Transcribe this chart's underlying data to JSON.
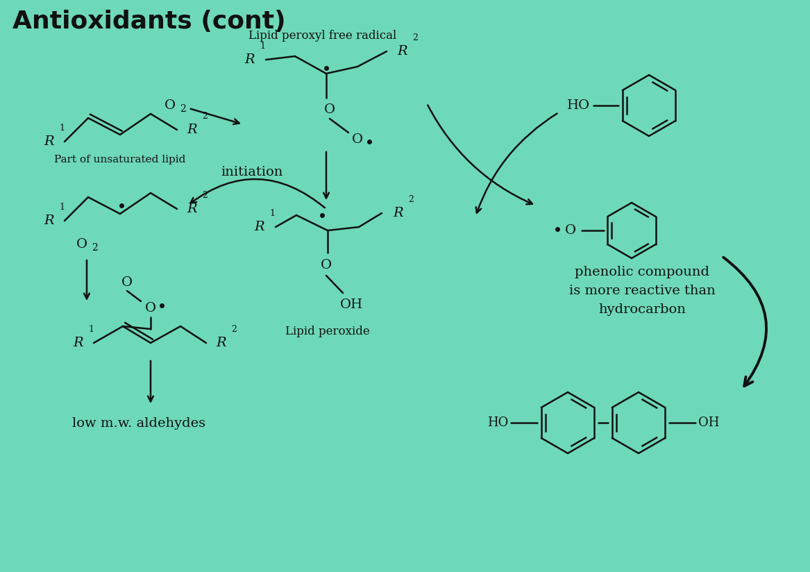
{
  "bg_color": "#6ed8ba",
  "line_color": "#111111",
  "text_color": "#111111",
  "title": "Antioxidants (cont)",
  "label_lipid_peroxyl": "Lipid peroxyl free radical",
  "label_initiation": "initiation",
  "label_unsaturated": "Part of unsaturated lipid",
  "label_lipid_peroxide": "Lipid peroxide",
  "label_aldehydes": "low m.w. aldehydes",
  "label_phenolic1": "phenolic compound",
  "label_phenolic2": "is more reactive than",
  "label_phenolic3": "hydrocarbon"
}
